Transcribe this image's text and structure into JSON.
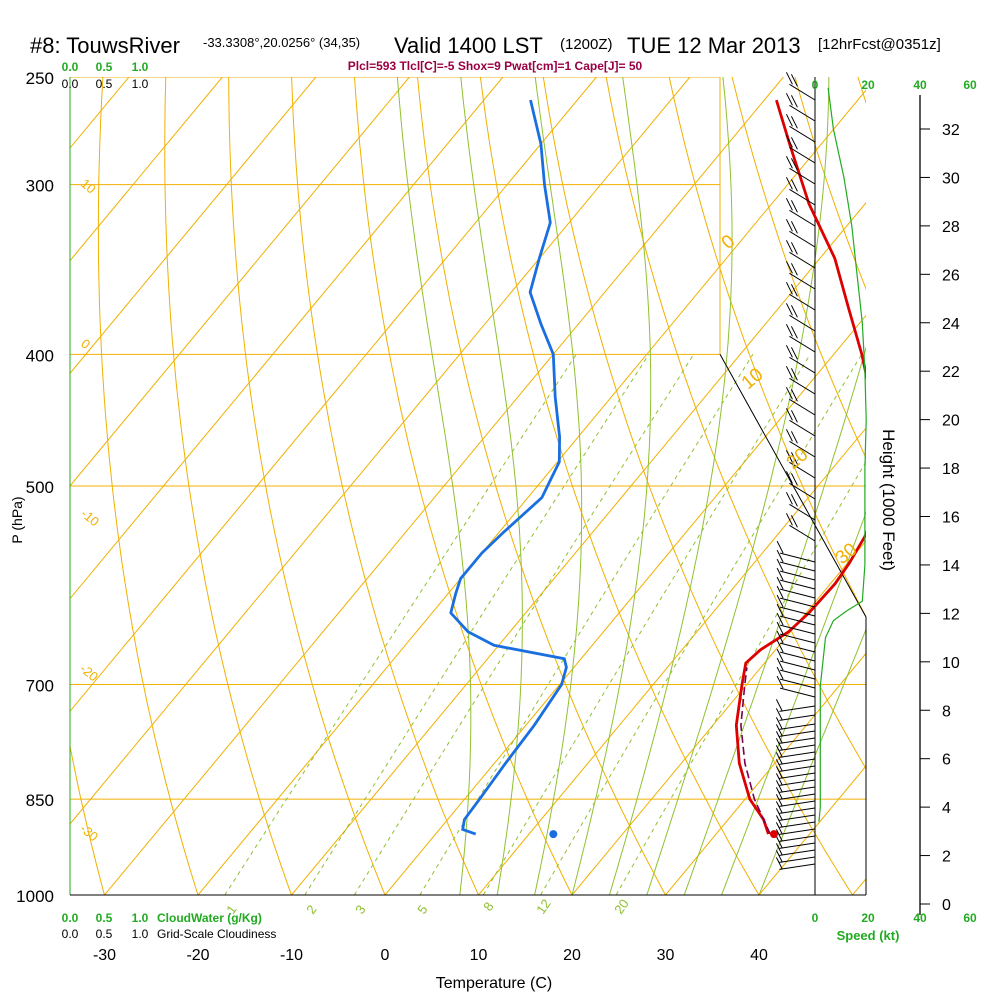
{
  "header": {
    "station": "#8: TouwsRiver",
    "coords": "-33.3308°,20.0256° (34,35)",
    "valid": "Valid 1400 LST",
    "zulu": "(1200Z)",
    "date": "TUE 12 Mar 2013",
    "fcst": "[12hrFcst@0351z]",
    "indices": "Plcl=593 Tlcl[C]=-5 Shox=9 Pwat[cm]=1 Cape[J]= 50"
  },
  "colors": {
    "temperature": "#dd0000",
    "dewpoint": "#1a6fe0",
    "parcel": "#7a0050",
    "isotherm": "#f0b000",
    "dry_adiabat": "#f0b000",
    "moist_adiabat": "#90c030",
    "mixing_ratio": "#90c030",
    "cloud_scale": "#22aa22",
    "speed": "#22aa22"
  },
  "chart_data": [
    {
      "type": "line",
      "title": "Skew-T sounding",
      "xlabel": "Temperature (C)",
      "ylabel": "P (hPa)",
      "x_ticks": [
        -30,
        -20,
        -10,
        0,
        10,
        20,
        30,
        40
      ],
      "y_ticks": [
        250,
        300,
        400,
        500,
        700,
        850,
        1000
      ],
      "xlim": [
        -35,
        45
      ],
      "ylim": [
        1000,
        250
      ],
      "y_scale": "log",
      "series": [
        {
          "color": "#dd0000",
          "values": [
            [
              902,
              35.6
            ],
            [
              880,
              33.8
            ],
            [
              850,
              30.5
            ],
            [
              800,
              26.2
            ],
            [
              750,
              22.5
            ],
            [
              700,
              19.5
            ],
            [
              675,
              18.0
            ],
            [
              660,
              18.4
            ],
            [
              640,
              19.8
            ],
            [
              620,
              20.3
            ],
            [
              590,
              20.5
            ],
            [
              570,
              20.2
            ],
            [
              545,
              19.5
            ],
            [
              520,
              18.4
            ],
            [
              500,
              17.2
            ],
            [
              470,
              13.5
            ],
            [
              440,
              9.3
            ],
            [
              400,
              3.0
            ],
            [
              370,
              -2.5
            ],
            [
              340,
              -8.4
            ],
            [
              310,
              -16.0
            ],
            [
              280,
              -23.4
            ],
            [
              260,
              -28.7
            ]
          ]
        },
        {
          "color": "#1a6fe0",
          "values": [
            [
              902,
              4.3
            ],
            [
              895,
              2.5
            ],
            [
              880,
              1.8
            ],
            [
              850,
              1.6
            ],
            [
              800,
              1.2
            ],
            [
              750,
              0.9
            ],
            [
              700,
              0.2
            ],
            [
              680,
              -0.8
            ],
            [
              670,
              -1.8
            ],
            [
              655,
              -10.5
            ],
            [
              640,
              -14.5
            ],
            [
              620,
              -18.0
            ],
            [
              600,
              -19.2
            ],
            [
              585,
              -20.0
            ],
            [
              560,
              -20.0
            ],
            [
              540,
              -19.5
            ],
            [
              510,
              -18.5
            ],
            [
              480,
              -19.8
            ],
            [
              460,
              -22.0
            ],
            [
              430,
              -26.0
            ],
            [
              400,
              -30.0
            ],
            [
              380,
              -34.0
            ],
            [
              360,
              -38.0
            ],
            [
              340,
              -40.0
            ],
            [
              320,
              -42.0
            ],
            [
              300,
              -46.0
            ],
            [
              280,
              -50.0
            ],
            [
              260,
              -55.0
            ]
          ]
        },
        {
          "color": "#7a0050",
          "dashed": true,
          "values": [
            [
              902,
              35.8
            ],
            [
              850,
              31.0
            ],
            [
              800,
              26.8
            ],
            [
              750,
              23.0
            ],
            [
              700,
              19.8
            ],
            [
              680,
              18.5
            ]
          ]
        }
      ],
      "points": [
        {
          "p": 902,
          "t": 36.2,
          "color": "#dd0000"
        },
        {
          "p": 902,
          "t": 12.6,
          "color": "#1a6fe0"
        }
      ],
      "isotherm_labels": [
        "10",
        "0",
        "-10",
        "-20",
        "-30"
      ],
      "dry_adiabat_labels": [
        "0",
        "10",
        "20",
        "30"
      ],
      "mixing_ratio_labels": [
        "1",
        "2",
        "3",
        "5",
        "8",
        "12",
        "20"
      ]
    },
    {
      "type": "line",
      "xlabel": "Speed (kt)",
      "x_ticks": [
        "0",
        "20",
        "40",
        "60"
      ],
      "y_ticks": [
        0,
        2,
        4,
        6,
        8,
        10,
        12,
        14,
        16,
        18,
        20,
        22,
        24,
        26,
        28,
        30,
        32
      ],
      "ylabel": "Height (1000 Feet)",
      "series": [
        {
          "color": "#22aa22",
          "values": [
            [
              3.4,
              1.5
            ],
            [
              4,
              2
            ],
            [
              5,
              2
            ],
            [
              6,
              2
            ],
            [
              7,
              2
            ],
            [
              8,
              2
            ],
            [
              9,
              2
            ],
            [
              10,
              3
            ],
            [
              11,
              4
            ],
            [
              11.7,
              7
            ],
            [
              12.1,
              12
            ],
            [
              12.5,
              18
            ],
            [
              14,
              19
            ],
            [
              16,
              19
            ],
            [
              18,
              19
            ],
            [
              20,
              19.5
            ],
            [
              22,
              19
            ],
            [
              24,
              18
            ],
            [
              26,
              16
            ],
            [
              28,
              14
            ],
            [
              30,
              11
            ],
            [
              32,
              7
            ],
            [
              33.7,
              5
            ]
          ]
        }
      ]
    }
  ],
  "cloud_scale": {
    "cw_ticks": [
      "0.0",
      "0.5",
      "1.0"
    ],
    "gs_ticks": [
      "0.0",
      "0.5",
      "1.0"
    ],
    "cw_label": "CloudWater (g/Kg)",
    "gs_label": "Grid-Scale Cloudiness"
  }
}
